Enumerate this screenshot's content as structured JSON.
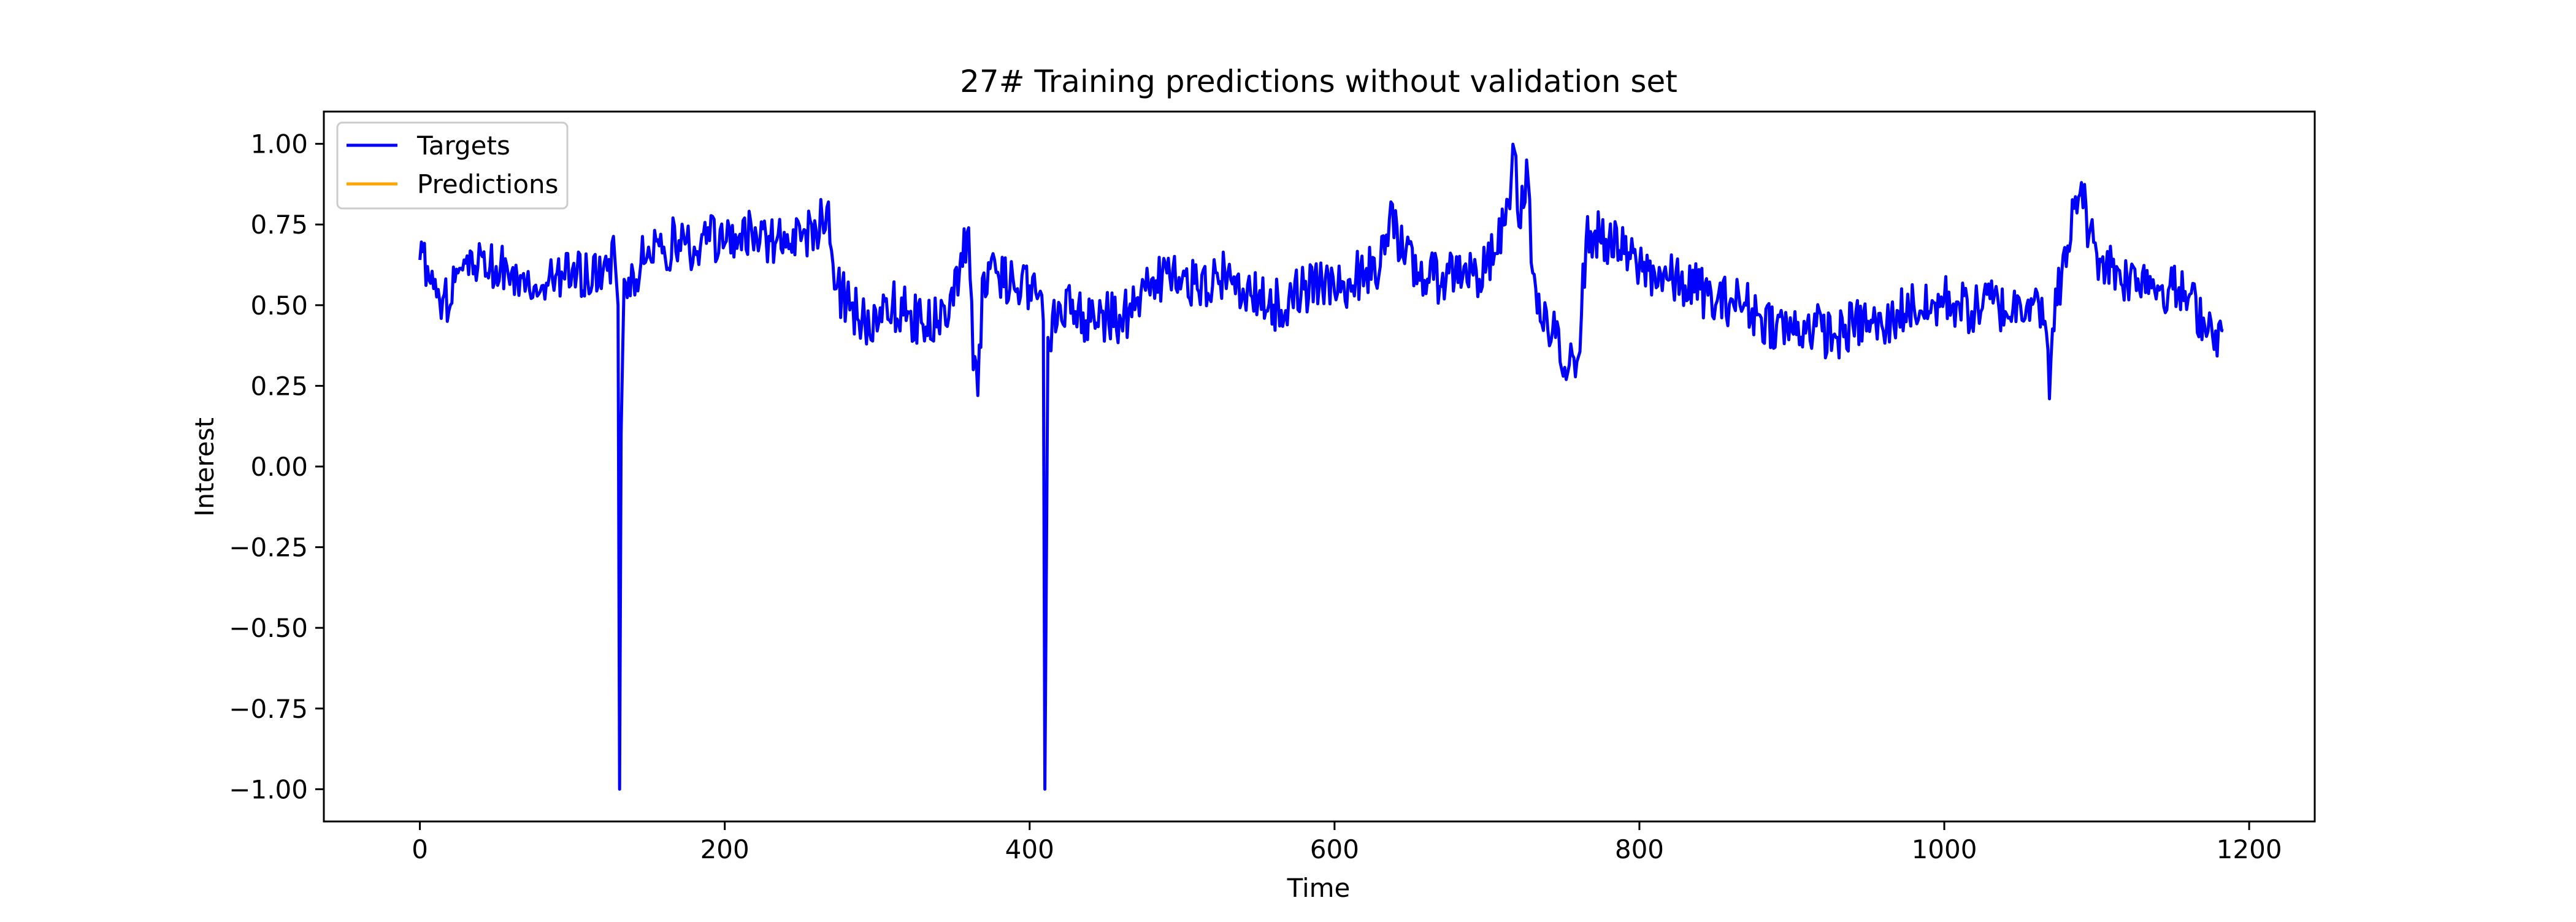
{
  "chart_data": {
    "type": "line",
    "title": "27# Training predictions without validation set",
    "xlabel": "Time",
    "ylabel": "Interest",
    "xlim": [
      -63,
      1243
    ],
    "ylim": [
      -1.1,
      1.1
    ],
    "xticks": [
      0,
      200,
      400,
      600,
      800,
      1000,
      1200
    ],
    "xtick_labels": [
      "0",
      "200",
      "400",
      "600",
      "800",
      "1000",
      "1200"
    ],
    "yticks": [
      1.0,
      0.75,
      0.5,
      0.25,
      0.0,
      -0.25,
      -0.5,
      -0.75,
      -1.0
    ],
    "ytick_labels": [
      "1.00",
      "0.75",
      "0.50",
      "0.25",
      "0.00",
      "−0.25",
      "−0.50",
      "−0.75",
      "−1.00"
    ],
    "grid": false,
    "legend_position": "top-left",
    "series": [
      {
        "name": "Targets",
        "color": "#0000ff",
        "anchors": [
          [
            0,
            0.64
          ],
          [
            5,
            0.62
          ],
          [
            10,
            0.58
          ],
          [
            15,
            0.52
          ],
          [
            20,
            0.5
          ],
          [
            25,
            0.6
          ],
          [
            30,
            0.63
          ],
          [
            40,
            0.66
          ],
          [
            50,
            0.62
          ],
          [
            60,
            0.6
          ],
          [
            70,
            0.57
          ],
          [
            80,
            0.56
          ],
          [
            90,
            0.6
          ],
          [
            100,
            0.61
          ],
          [
            110,
            0.58
          ],
          [
            120,
            0.6
          ],
          [
            128,
            0.64
          ],
          [
            130,
            0.5
          ],
          [
            131,
            -1.0
          ],
          [
            132,
            0.1
          ],
          [
            134,
            0.58
          ],
          [
            140,
            0.6
          ],
          [
            150,
            0.68
          ],
          [
            160,
            0.68
          ],
          [
            170,
            0.7
          ],
          [
            180,
            0.68
          ],
          [
            190,
            0.7
          ],
          [
            200,
            0.69
          ],
          [
            210,
            0.72
          ],
          [
            220,
            0.74
          ],
          [
            230,
            0.7
          ],
          [
            240,
            0.68
          ],
          [
            250,
            0.7
          ],
          [
            260,
            0.73
          ],
          [
            268,
            0.82
          ],
          [
            272,
            0.55
          ],
          [
            280,
            0.52
          ],
          [
            290,
            0.45
          ],
          [
            300,
            0.42
          ],
          [
            310,
            0.5
          ],
          [
            320,
            0.48
          ],
          [
            330,
            0.44
          ],
          [
            340,
            0.45
          ],
          [
            350,
            0.5
          ],
          [
            355,
            0.66
          ],
          [
            360,
            0.74
          ],
          [
            363,
            0.3
          ],
          [
            366,
            0.22
          ],
          [
            370,
            0.6
          ],
          [
            380,
            0.58
          ],
          [
            390,
            0.55
          ],
          [
            400,
            0.56
          ],
          [
            405,
            0.52
          ],
          [
            409,
            0.45
          ],
          [
            410,
            -1.0
          ],
          [
            412,
            0.4
          ],
          [
            420,
            0.5
          ],
          [
            430,
            0.48
          ],
          [
            440,
            0.45
          ],
          [
            450,
            0.47
          ],
          [
            460,
            0.45
          ],
          [
            470,
            0.52
          ],
          [
            480,
            0.58
          ],
          [
            490,
            0.6
          ],
          [
            500,
            0.58
          ],
          [
            510,
            0.55
          ],
          [
            520,
            0.56
          ],
          [
            530,
            0.6
          ],
          [
            540,
            0.55
          ],
          [
            550,
            0.52
          ],
          [
            560,
            0.5
          ],
          [
            570,
            0.52
          ],
          [
            580,
            0.55
          ],
          [
            590,
            0.56
          ],
          [
            600,
            0.54
          ],
          [
            610,
            0.58
          ],
          [
            620,
            0.6
          ],
          [
            630,
            0.62
          ],
          [
            637,
            0.82
          ],
          [
            645,
            0.65
          ],
          [
            655,
            0.6
          ],
          [
            665,
            0.58
          ],
          [
            675,
            0.6
          ],
          [
            685,
            0.62
          ],
          [
            695,
            0.58
          ],
          [
            705,
            0.66
          ],
          [
            712,
            0.75
          ],
          [
            718,
            0.98
          ],
          [
            722,
            0.74
          ],
          [
            726,
            0.95
          ],
          [
            730,
            0.6
          ],
          [
            735,
            0.45
          ],
          [
            740,
            0.42
          ],
          [
            745,
            0.4
          ],
          [
            750,
            0.28
          ],
          [
            755,
            0.38
          ],
          [
            760,
            0.34
          ],
          [
            765,
            0.7
          ],
          [
            770,
            0.72
          ],
          [
            780,
            0.7
          ],
          [
            790,
            0.66
          ],
          [
            800,
            0.62
          ],
          [
            810,
            0.6
          ],
          [
            820,
            0.58
          ],
          [
            830,
            0.56
          ],
          [
            840,
            0.55
          ],
          [
            850,
            0.5
          ],
          [
            860,
            0.52
          ],
          [
            870,
            0.5
          ],
          [
            880,
            0.46
          ],
          [
            890,
            0.44
          ],
          [
            900,
            0.42
          ],
          [
            910,
            0.44
          ],
          [
            920,
            0.42
          ],
          [
            930,
            0.4
          ],
          [
            940,
            0.44
          ],
          [
            950,
            0.45
          ],
          [
            960,
            0.42
          ],
          [
            970,
            0.48
          ],
          [
            980,
            0.5
          ],
          [
            990,
            0.48
          ],
          [
            1000,
            0.52
          ],
          [
            1010,
            0.5
          ],
          [
            1020,
            0.48
          ],
          [
            1030,
            0.52
          ],
          [
            1040,
            0.48
          ],
          [
            1050,
            0.5
          ],
          [
            1060,
            0.55
          ],
          [
            1066,
            0.45
          ],
          [
            1069,
            0.21
          ],
          [
            1073,
            0.55
          ],
          [
            1080,
            0.62
          ],
          [
            1085,
            0.8
          ],
          [
            1090,
            0.88
          ],
          [
            1095,
            0.72
          ],
          [
            1100,
            0.66
          ],
          [
            1110,
            0.62
          ],
          [
            1120,
            0.58
          ],
          [
            1130,
            0.6
          ],
          [
            1140,
            0.56
          ],
          [
            1150,
            0.55
          ],
          [
            1160,
            0.52
          ],
          [
            1170,
            0.46
          ],
          [
            1178,
            0.42
          ],
          [
            1183,
            0.42
          ]
        ]
      },
      {
        "name": "Predictions",
        "color": "#ffa500",
        "anchors": []
      }
    ]
  }
}
